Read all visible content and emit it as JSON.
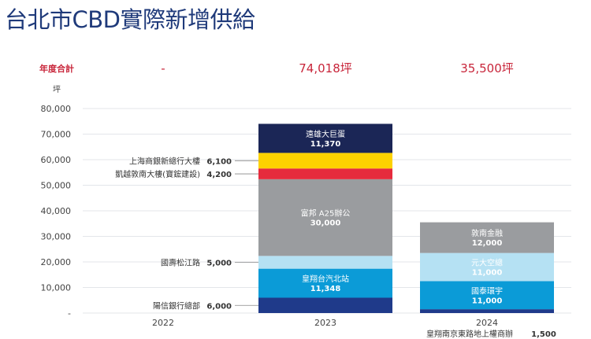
{
  "title": "台北市CBD實際新增供給",
  "chart_data": {
    "type": "bar",
    "stacked": true,
    "title": "台北市CBD實際新增供給",
    "ylabel": "坪",
    "ylim": [
      0,
      80000
    ],
    "yticks": [
      "-",
      "10,000",
      "20,000",
      "30,000",
      "40,000",
      "50,000",
      "60,000",
      "70,000",
      "80,000"
    ],
    "grid": true,
    "categories": [
      "2022",
      "2023",
      "2024"
    ],
    "totals_label": "年度合計",
    "totals": [
      "-",
      "74,018坪",
      "35,500坪"
    ],
    "stacks": [
      [],
      [
        {
          "name": "陽信銀行總部",
          "value": 6000,
          "label": "6,000",
          "color": "#1f3a8a"
        },
        {
          "name": "皇翔台汽北站",
          "value": 11348,
          "label": "11,348",
          "color": "#0b9bd7"
        },
        {
          "name": "國壽松江路",
          "value": 5000,
          "label": "5,000",
          "color": "#b5e1f3"
        },
        {
          "name": "富邦 A25辦公",
          "value": 30000,
          "label": "30,000",
          "color": "#9a9c9f"
        },
        {
          "name": "凱越敦南大樓(寶鋐建設)",
          "value": 4200,
          "label": "4,200",
          "color": "#e62b3d"
        },
        {
          "name": "上海商銀新總行大樓",
          "value": 6100,
          "label": "6,100",
          "color": "#fdd200"
        },
        {
          "name": "遠雄大巨蛋",
          "value": 11370,
          "label": "11,370",
          "color": "#1b2656"
        }
      ],
      [
        {
          "name": "皇翔南京東路地上權商辦",
          "value": 1500,
          "label": "1,500",
          "color": "#1f3a8a"
        },
        {
          "name": "國泰環宇",
          "value": 11000,
          "label": "11,000",
          "color": "#0b9bd7"
        },
        {
          "name": "元大空總",
          "value": 11000,
          "label": "11,000",
          "color": "#b5e1f3"
        },
        {
          "name": "敦南金融",
          "value": 12000,
          "label": "12,000",
          "color": "#9a9c9f"
        }
      ]
    ]
  }
}
